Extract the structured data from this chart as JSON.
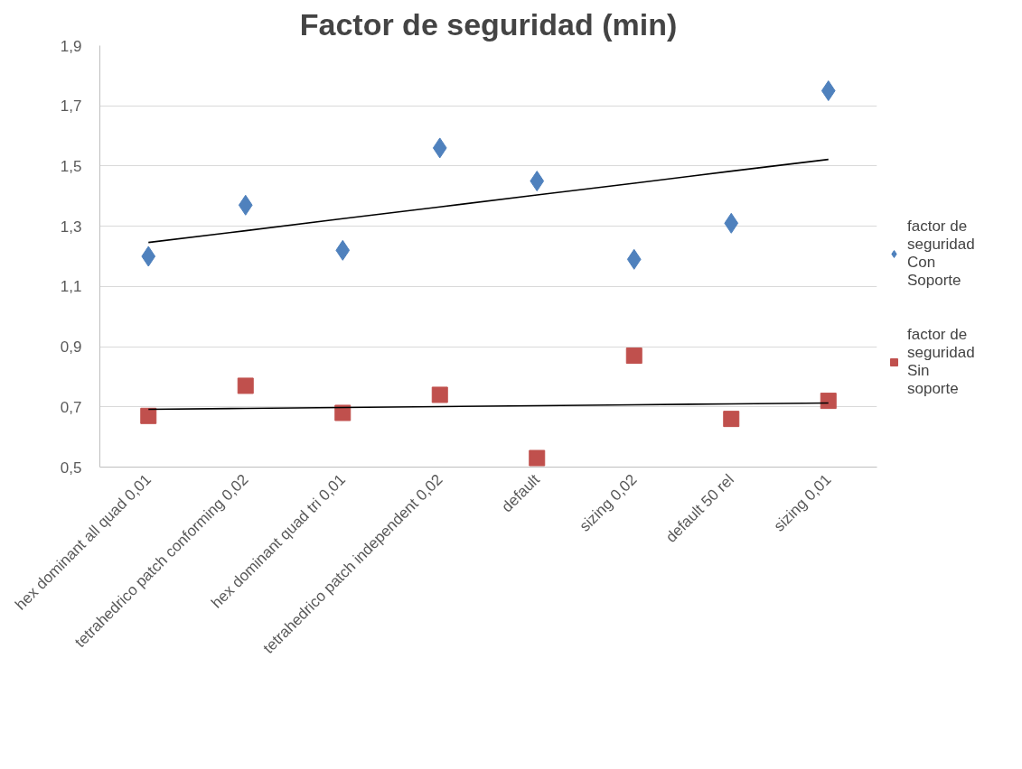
{
  "chart_data": {
    "type": "scatter",
    "title": "Factor de seguridad (min)",
    "categories": [
      "hex dominant all quad 0,01",
      "tetrahedrico patch conforming 0,02",
      "hex dominant quad tri 0,01",
      "tetrahedrico patch independent 0,02",
      "default",
      "sizing 0,02",
      "default 50 rel",
      "sizing 0,01"
    ],
    "series": [
      {
        "name": "factor de seguridad Con Soporte",
        "color": "#4f81bd",
        "marker": "diamond",
        "values": [
          1.2,
          1.37,
          1.22,
          1.56,
          1.45,
          1.19,
          1.31,
          1.75
        ]
      },
      {
        "name": "factor de seguridad Sin soporte",
        "color": "#c0504d",
        "marker": "square",
        "values": [
          0.67,
          0.77,
          0.68,
          0.74,
          0.53,
          0.87,
          0.66,
          0.72
        ]
      },
      {
        "type": "line",
        "color": "#000000",
        "values": [
          1.246,
          1.285,
          1.325,
          1.364,
          1.404,
          1.443,
          1.483,
          1.522
        ]
      },
      {
        "type": "line",
        "color": "#000000",
        "values": [
          0.692,
          0.695,
          0.698,
          0.701,
          0.704,
          0.707,
          0.71,
          0.713
        ]
      }
    ],
    "ylim": [
      0.5,
      1.9
    ],
    "yticks": [
      {
        "value": 0.5,
        "label": "0,5"
      },
      {
        "value": 0.7,
        "label": "0,7"
      },
      {
        "value": 0.9,
        "label": "0,9"
      },
      {
        "value": 1.1,
        "label": "1,1"
      },
      {
        "value": 1.3,
        "label": "1,3"
      },
      {
        "value": 1.5,
        "label": "1,5"
      },
      {
        "value": 1.7,
        "label": "1,7"
      },
      {
        "value": 1.9,
        "label": "1,9"
      }
    ],
    "grid": "y",
    "legend": "right"
  }
}
